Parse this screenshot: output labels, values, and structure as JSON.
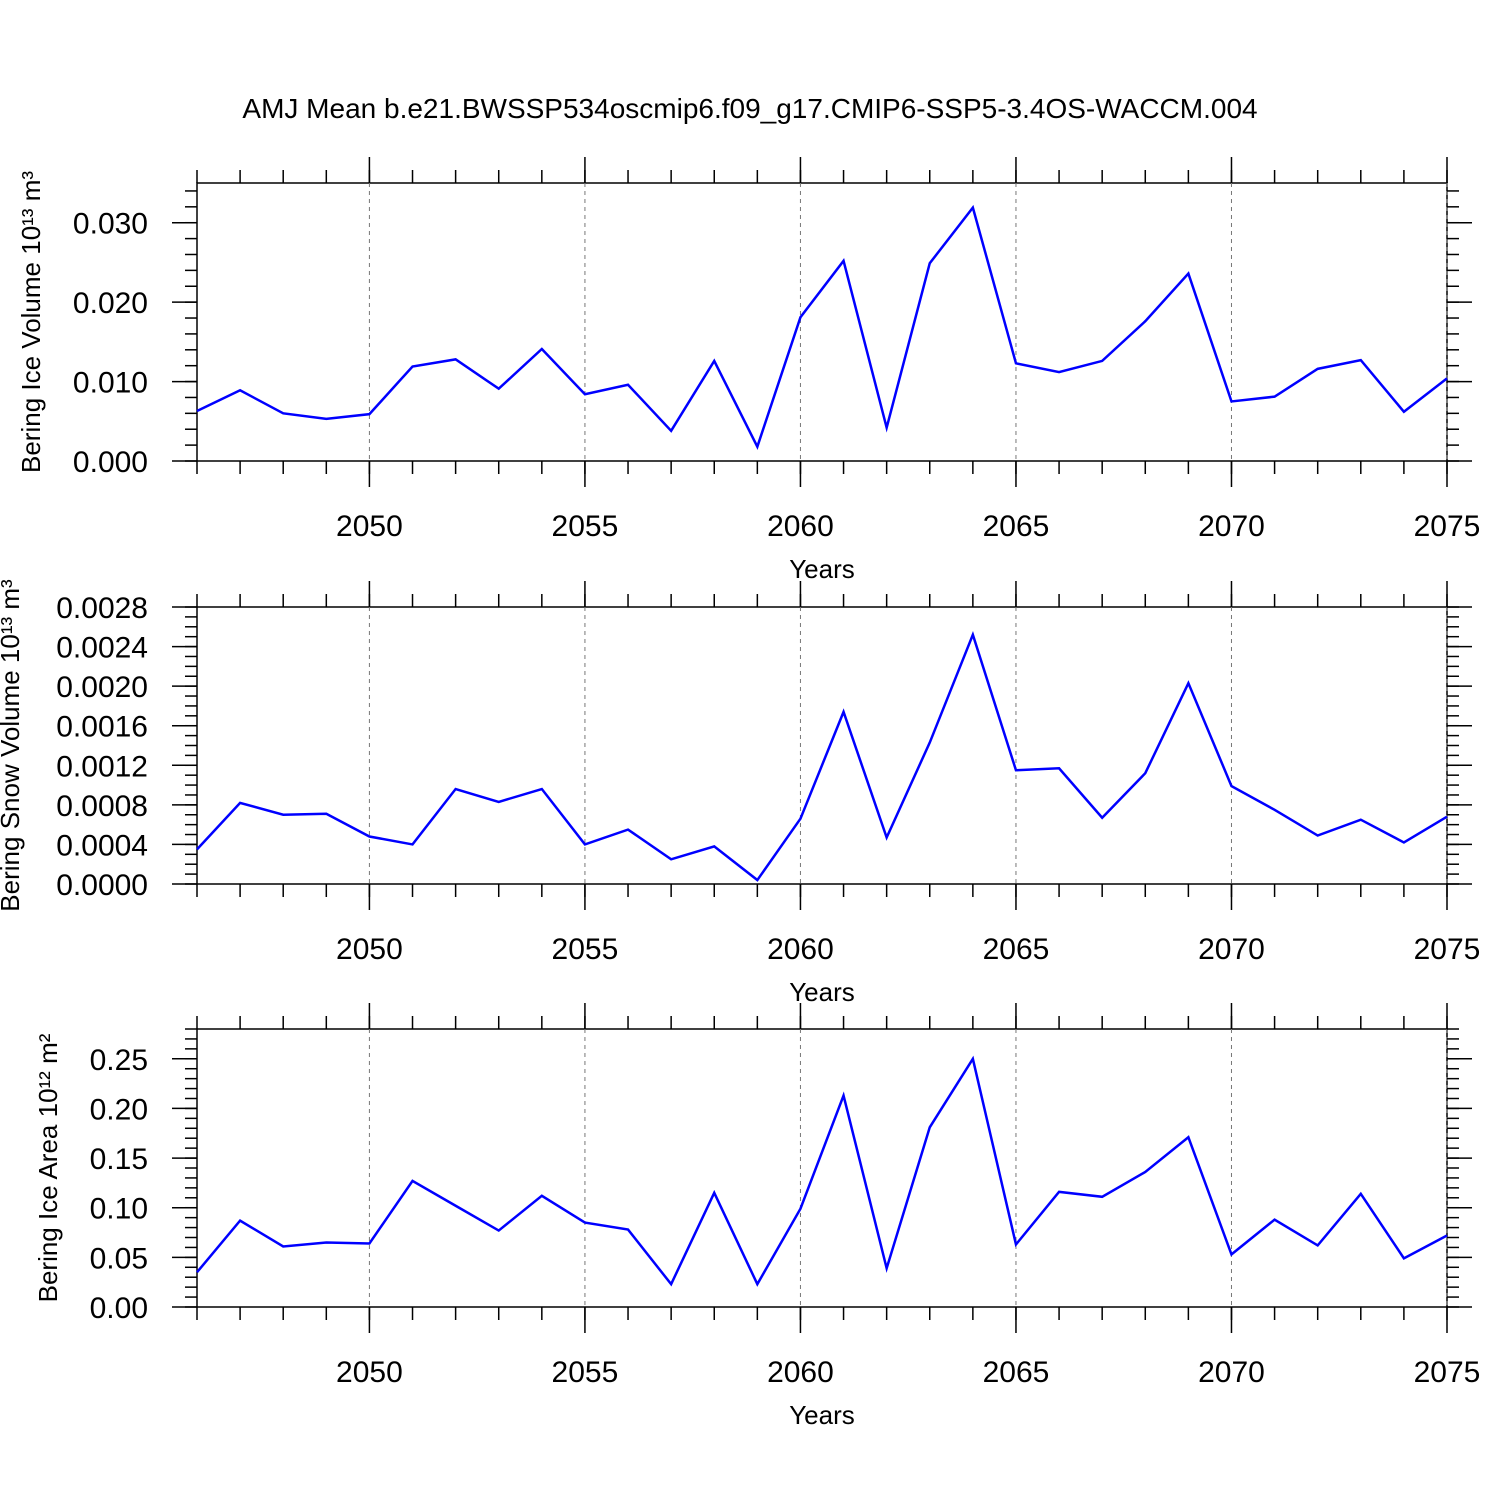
{
  "chart_data": [
    {
      "type": "line",
      "title": "AMJ Mean b.e21.BWSSP534oscmip6.f09_g17.CMIP6-SSP5-3.4OS-WACCM.004",
      "x_label": "Years",
      "y_label": "Bering Ice Volume 10¹³ m³",
      "x": [
        2046,
        2047,
        2048,
        2049,
        2050,
        2051,
        2052,
        2053,
        2054,
        2055,
        2056,
        2057,
        2058,
        2059,
        2060,
        2061,
        2062,
        2063,
        2064,
        2065,
        2066,
        2067,
        2068,
        2069,
        2070,
        2071,
        2072,
        2073,
        2074,
        2075
      ],
      "values": [
        0.0063,
        0.0089,
        0.006,
        0.0053,
        0.0059,
        0.0119,
        0.0128,
        0.0091,
        0.0141,
        0.0084,
        0.0096,
        0.0038,
        0.0126,
        0.0018,
        0.0181,
        0.0252,
        0.0042,
        0.0249,
        0.0319,
        0.0123,
        0.0112,
        0.0126,
        0.0176,
        0.0236,
        0.0075,
        0.0081,
        0.0116,
        0.0127,
        0.0062,
        0.0104
      ],
      "color": "#0000ff",
      "xlim": [
        2046,
        2075
      ],
      "xticks": [
        2050,
        2055,
        2060,
        2065,
        2070,
        2075
      ],
      "ylim": [
        0,
        0.035
      ],
      "yticks": [
        {
          "value": 0,
          "label": "0.000"
        },
        {
          "value": 0.01,
          "label": "0.010"
        },
        {
          "value": 0.02,
          "label": "0.020"
        },
        {
          "value": 0.03,
          "label": "0.030"
        }
      ],
      "x_grid": true
    },
    {
      "type": "line",
      "x_label": "Years",
      "y_label": "Bering Snow Volume 10¹³ m³",
      "x": [
        2046,
        2047,
        2048,
        2049,
        2050,
        2051,
        2052,
        2053,
        2054,
        2055,
        2056,
        2057,
        2058,
        2059,
        2060,
        2061,
        2062,
        2063,
        2064,
        2065,
        2066,
        2067,
        2068,
        2069,
        2070,
        2071,
        2072,
        2073,
        2074,
        2075
      ],
      "values": [
        0.00035,
        0.00082,
        0.0007,
        0.00071,
        0.00048,
        0.0004,
        0.00096,
        0.00083,
        0.00096,
        0.0004,
        0.00055,
        0.00025,
        0.00038,
        4e-05,
        0.00066,
        0.00174,
        0.00047,
        0.00143,
        0.00252,
        0.00115,
        0.00117,
        0.00067,
        0.00112,
        0.00203,
        0.00099,
        0.00075,
        0.00049,
        0.00065,
        0.00042,
        0.00068
      ],
      "color": "#0000ff",
      "xlim": [
        2046,
        2075
      ],
      "xticks": [
        2050,
        2055,
        2060,
        2065,
        2070,
        2075
      ],
      "ylim": [
        0,
        0.0028
      ],
      "yticks": [
        {
          "value": 0,
          "label": "0.0000"
        },
        {
          "value": 0.0004,
          "label": "0.0004"
        },
        {
          "value": 0.0008,
          "label": "0.0008"
        },
        {
          "value": 0.0012,
          "label": "0.0012"
        },
        {
          "value": 0.0016,
          "label": "0.0016"
        },
        {
          "value": 0.002,
          "label": "0.0020"
        },
        {
          "value": 0.0024,
          "label": "0.0024"
        },
        {
          "value": 0.0028,
          "label": "0.0028"
        }
      ],
      "x_grid": true
    },
    {
      "type": "line",
      "x_label": "Years",
      "y_label": "Bering Ice Area 10¹² m²",
      "x": [
        2046,
        2047,
        2048,
        2049,
        2050,
        2051,
        2052,
        2053,
        2054,
        2055,
        2056,
        2057,
        2058,
        2059,
        2060,
        2061,
        2062,
        2063,
        2064,
        2065,
        2066,
        2067,
        2068,
        2069,
        2070,
        2071,
        2072,
        2073,
        2074,
        2075
      ],
      "values": [
        0.035,
        0.087,
        0.061,
        0.065,
        0.064,
        0.127,
        0.102,
        0.077,
        0.112,
        0.085,
        0.078,
        0.023,
        0.115,
        0.023,
        0.099,
        0.213,
        0.039,
        0.181,
        0.25,
        0.063,
        0.116,
        0.111,
        0.136,
        0.171,
        0.053,
        0.088,
        0.062,
        0.114,
        0.049,
        0.072
      ],
      "color": "#0000ff",
      "xlim": [
        2046,
        2075
      ],
      "xticks": [
        2050,
        2055,
        2060,
        2065,
        2070,
        2075
      ],
      "ylim": [
        0,
        0.28
      ],
      "yticks": [
        {
          "value": 0,
          "label": "0.00"
        },
        {
          "value": 0.05,
          "label": "0.05"
        },
        {
          "value": 0.1,
          "label": "0.10"
        },
        {
          "value": 0.15,
          "label": "0.15"
        },
        {
          "value": 0.2,
          "label": "0.20"
        },
        {
          "value": 0.25,
          "label": "0.25"
        }
      ],
      "x_grid": true
    }
  ]
}
